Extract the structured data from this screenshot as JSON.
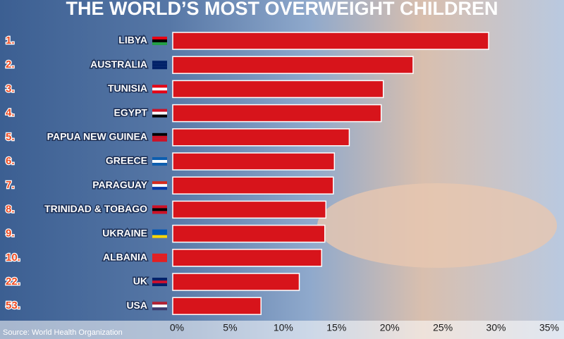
{
  "chart_data": {
    "type": "bar",
    "orientation": "horizontal",
    "title": "THE WORLD’S MOST OVERWEIGHT CHILDREN",
    "source": "Source: World Health Organization",
    "ranks": [
      "1.",
      "2.",
      "3.",
      "4.",
      "5.",
      "6.",
      "7.",
      "8.",
      "9.",
      "10.",
      "22.",
      "53."
    ],
    "categories": [
      "LIBYA",
      "AUSTRALIA",
      "TUNISIA",
      "EGYPT",
      "PAPUA NEW GUINEA",
      "GREECE",
      "PARAGUAY",
      "TRINIDAD & TOBAGO",
      "UKRAINE",
      "ALBANIA",
      "UK",
      "USA"
    ],
    "values": [
      29.7,
      22.6,
      19.8,
      19.6,
      16.6,
      15.2,
      15.1,
      14.4,
      14.3,
      14.0,
      11.9,
      8.3
    ],
    "color": "#d7141b",
    "xlim": [
      0,
      35
    ],
    "xticks": [
      {
        "value": 0,
        "label": "0%"
      },
      {
        "value": 5,
        "label": "5%"
      },
      {
        "value": 10,
        "label": "10%"
      },
      {
        "value": 15,
        "label": "15%"
      },
      {
        "value": 20,
        "label": "20%"
      },
      {
        "value": 25,
        "label": "25%"
      },
      {
        "value": 30,
        "label": "30%"
      },
      {
        "value": 35,
        "label": "35%"
      }
    ]
  }
}
